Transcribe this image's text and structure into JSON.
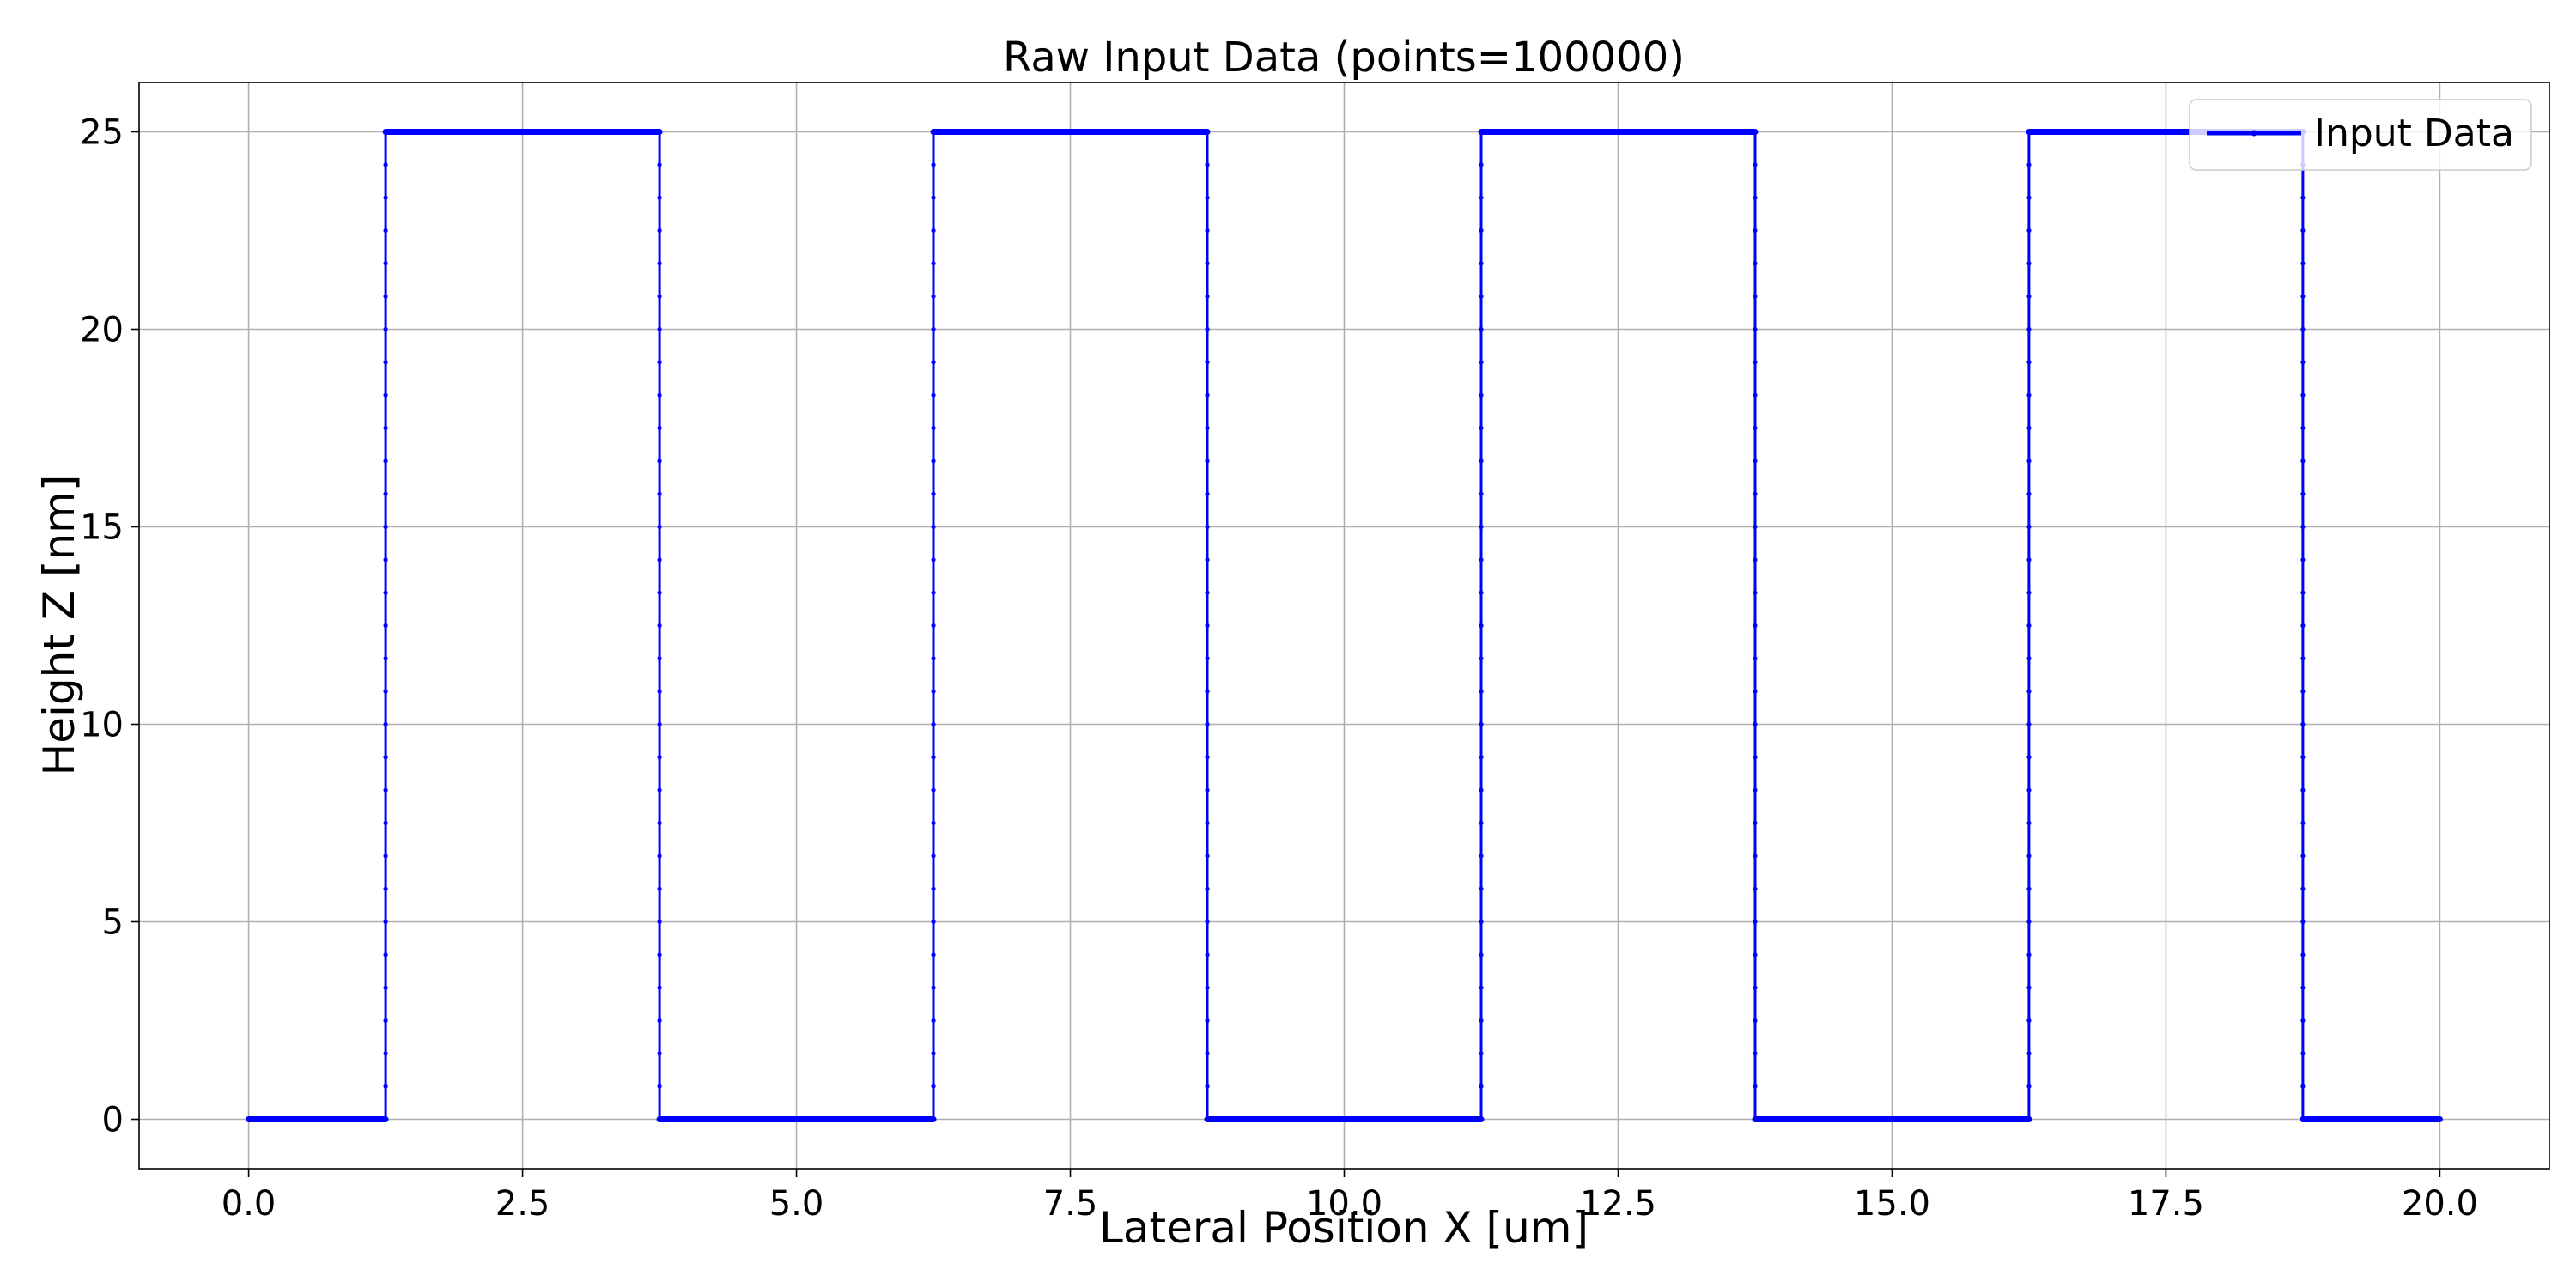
{
  "chart_data": {
    "type": "line",
    "title": "Raw Input Data (points=100000)",
    "xlabel": "Lateral Position X [um]",
    "ylabel": "Height Z [nm]",
    "xlim": [
      -1.0,
      21.0
    ],
    "ylim": [
      -1.25,
      26.25
    ],
    "xticks": [
      0.0,
      2.5,
      5.0,
      7.5,
      10.0,
      12.5,
      15.0,
      17.5,
      20.0
    ],
    "xtick_labels": [
      "0.0",
      "2.5",
      "5.0",
      "7.5",
      "10.0",
      "12.5",
      "15.0",
      "17.5",
      "20.0"
    ],
    "yticks": [
      0,
      5,
      10,
      15,
      20,
      25
    ],
    "ytick_labels": [
      "0",
      "5",
      "10",
      "15",
      "20",
      "25"
    ],
    "grid": true,
    "legend_position": "top-right",
    "series": [
      {
        "name": "Input Data",
        "color": "#0000ff",
        "marker": "dot",
        "x": [
          0.0,
          1.25,
          1.25,
          3.75,
          3.75,
          6.25,
          6.25,
          8.75,
          8.75,
          11.25,
          11.25,
          13.75,
          13.75,
          16.25,
          16.25,
          18.75,
          18.75,
          20.0
        ],
        "y": [
          0,
          0,
          25,
          25,
          0,
          0,
          25,
          25,
          0,
          0,
          25,
          25,
          0,
          0,
          25,
          25,
          0,
          0
        ]
      }
    ]
  }
}
